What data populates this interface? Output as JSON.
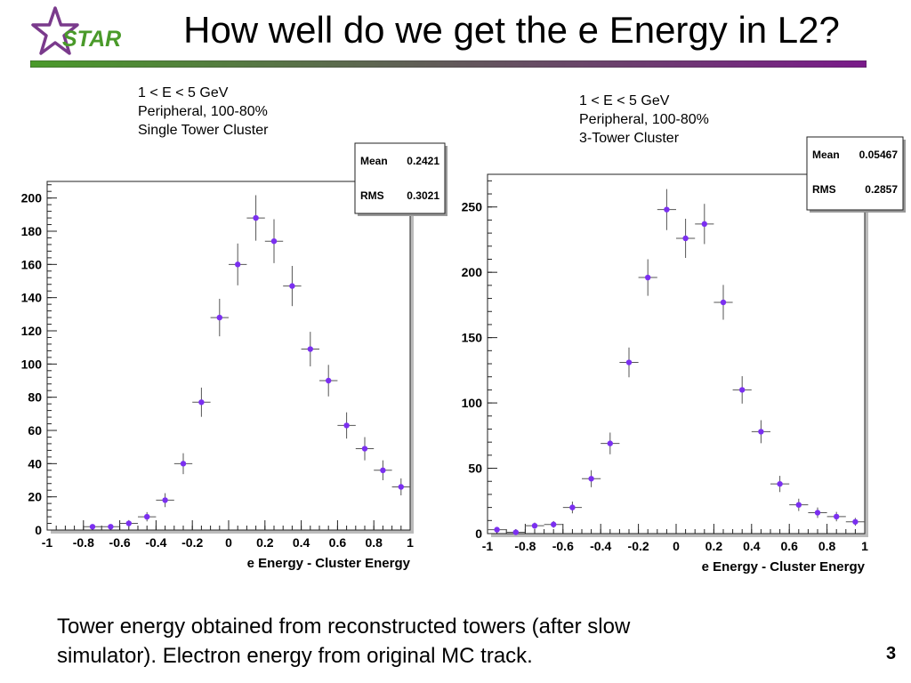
{
  "slide": {
    "title": "How well do we get the e Energy in L2?",
    "logo_text": "STAR",
    "footer_line1": "Tower energy obtained from reconstructed towers (after slow",
    "footer_line2": "simulator).  Electron energy from original MC track.",
    "page_number": "3"
  },
  "colors": {
    "logo_star": "#7a3a8c",
    "logo_text": "#4a9a2a",
    "title_bar_left": "#4a9a2a",
    "title_bar_right": "#7a1a8a",
    "marker": "#7b2ff0",
    "error_bar": "#555555"
  },
  "chart_data": [
    {
      "type": "scatter",
      "annotation_lines": [
        "1 < E < 5 GeV",
        "Peripheral, 100-80%",
        "Single Tower Cluster"
      ],
      "stats": [
        {
          "label": "Mean",
          "value": "0.2421"
        },
        {
          "label": "RMS",
          "value": "0.3021"
        }
      ],
      "xlabel": "e Energy - Cluster Energy",
      "ylabel": "",
      "xlim": [
        -1,
        1
      ],
      "ylim": [
        0,
        210
      ],
      "xticks": [
        -1,
        -0.8,
        -0.6,
        -0.4,
        -0.2,
        0,
        0.2,
        0.4,
        0.6,
        0.8,
        1
      ],
      "xtick_labels": [
        "-1",
        "-0.8",
        "-0.6",
        "-0.4",
        "-0.2",
        "0",
        "0.2",
        "0.4",
        "0.6",
        "0.8",
        "1"
      ],
      "yticks": [
        0,
        20,
        40,
        60,
        80,
        100,
        120,
        140,
        160,
        180,
        200
      ],
      "ytick_labels": [
        "0",
        "20",
        "40",
        "60",
        "80",
        "100",
        "120",
        "140",
        "160",
        "180",
        "200"
      ],
      "points": [
        {
          "x": -0.75,
          "y": 2,
          "err": 1.4
        },
        {
          "x": -0.65,
          "y": 2,
          "err": 1.4
        },
        {
          "x": -0.55,
          "y": 4,
          "err": 2
        },
        {
          "x": -0.45,
          "y": 8,
          "err": 2.8
        },
        {
          "x": -0.35,
          "y": 18,
          "err": 4.2
        },
        {
          "x": -0.25,
          "y": 40,
          "err": 6.3
        },
        {
          "x": -0.15,
          "y": 77,
          "err": 8.8
        },
        {
          "x": -0.05,
          "y": 128,
          "err": 11.3
        },
        {
          "x": 0.05,
          "y": 160,
          "err": 12.6
        },
        {
          "x": 0.15,
          "y": 188,
          "err": 13.7
        },
        {
          "x": 0.25,
          "y": 174,
          "err": 13.2
        },
        {
          "x": 0.35,
          "y": 147,
          "err": 12.1
        },
        {
          "x": 0.45,
          "y": 109,
          "err": 10.4
        },
        {
          "x": 0.55,
          "y": 90,
          "err": 9.5
        },
        {
          "x": 0.65,
          "y": 63,
          "err": 7.9
        },
        {
          "x": 0.75,
          "y": 49,
          "err": 7
        },
        {
          "x": 0.85,
          "y": 36,
          "err": 6
        },
        {
          "x": 0.95,
          "y": 26,
          "err": 5.1
        }
      ]
    },
    {
      "type": "scatter",
      "annotation_lines": [
        "1 < E < 5 GeV",
        "Peripheral, 100-80%",
        "3-Tower Cluster"
      ],
      "stats": [
        {
          "label": "Mean",
          "value": "0.05467"
        },
        {
          "label": "RMS",
          "value": "0.2857"
        }
      ],
      "xlabel": "e Energy - Cluster Energy",
      "ylabel": "",
      "xlim": [
        -1,
        1
      ],
      "ylim": [
        0,
        275
      ],
      "xticks": [
        -1,
        -0.8,
        -0.6,
        -0.4,
        -0.2,
        0,
        0.2,
        0.4,
        0.6,
        0.8,
        1
      ],
      "xtick_labels": [
        "-1",
        "-0.8",
        "-0.6",
        "-0.4",
        "-0.2",
        "0",
        "0.2",
        "0.4",
        "0.6",
        "0.8",
        "1"
      ],
      "yticks": [
        0,
        50,
        100,
        150,
        200,
        250
      ],
      "ytick_labels": [
        "0",
        "50",
        "100",
        "150",
        "200",
        "250"
      ],
      "points": [
        {
          "x": -0.95,
          "y": 3,
          "err": 1.7
        },
        {
          "x": -0.85,
          "y": 1,
          "err": 1
        },
        {
          "x": -0.75,
          "y": 6,
          "err": 2.4
        },
        {
          "x": -0.65,
          "y": 7,
          "err": 2.6
        },
        {
          "x": -0.55,
          "y": 20,
          "err": 4.5
        },
        {
          "x": -0.45,
          "y": 42,
          "err": 6.5
        },
        {
          "x": -0.35,
          "y": 69,
          "err": 8.3
        },
        {
          "x": -0.25,
          "y": 131,
          "err": 11.4
        },
        {
          "x": -0.15,
          "y": 196,
          "err": 14
        },
        {
          "x": -0.05,
          "y": 248,
          "err": 15.7
        },
        {
          "x": 0.05,
          "y": 226,
          "err": 15
        },
        {
          "x": 0.15,
          "y": 237,
          "err": 15.4
        },
        {
          "x": 0.25,
          "y": 177,
          "err": 13.3
        },
        {
          "x": 0.35,
          "y": 110,
          "err": 10.5
        },
        {
          "x": 0.45,
          "y": 78,
          "err": 8.8
        },
        {
          "x": 0.55,
          "y": 38,
          "err": 6.2
        },
        {
          "x": 0.65,
          "y": 22,
          "err": 4.7
        },
        {
          "x": 0.75,
          "y": 16,
          "err": 4
        },
        {
          "x": 0.85,
          "y": 13,
          "err": 3.6
        },
        {
          "x": 0.95,
          "y": 9,
          "err": 3
        }
      ]
    }
  ]
}
